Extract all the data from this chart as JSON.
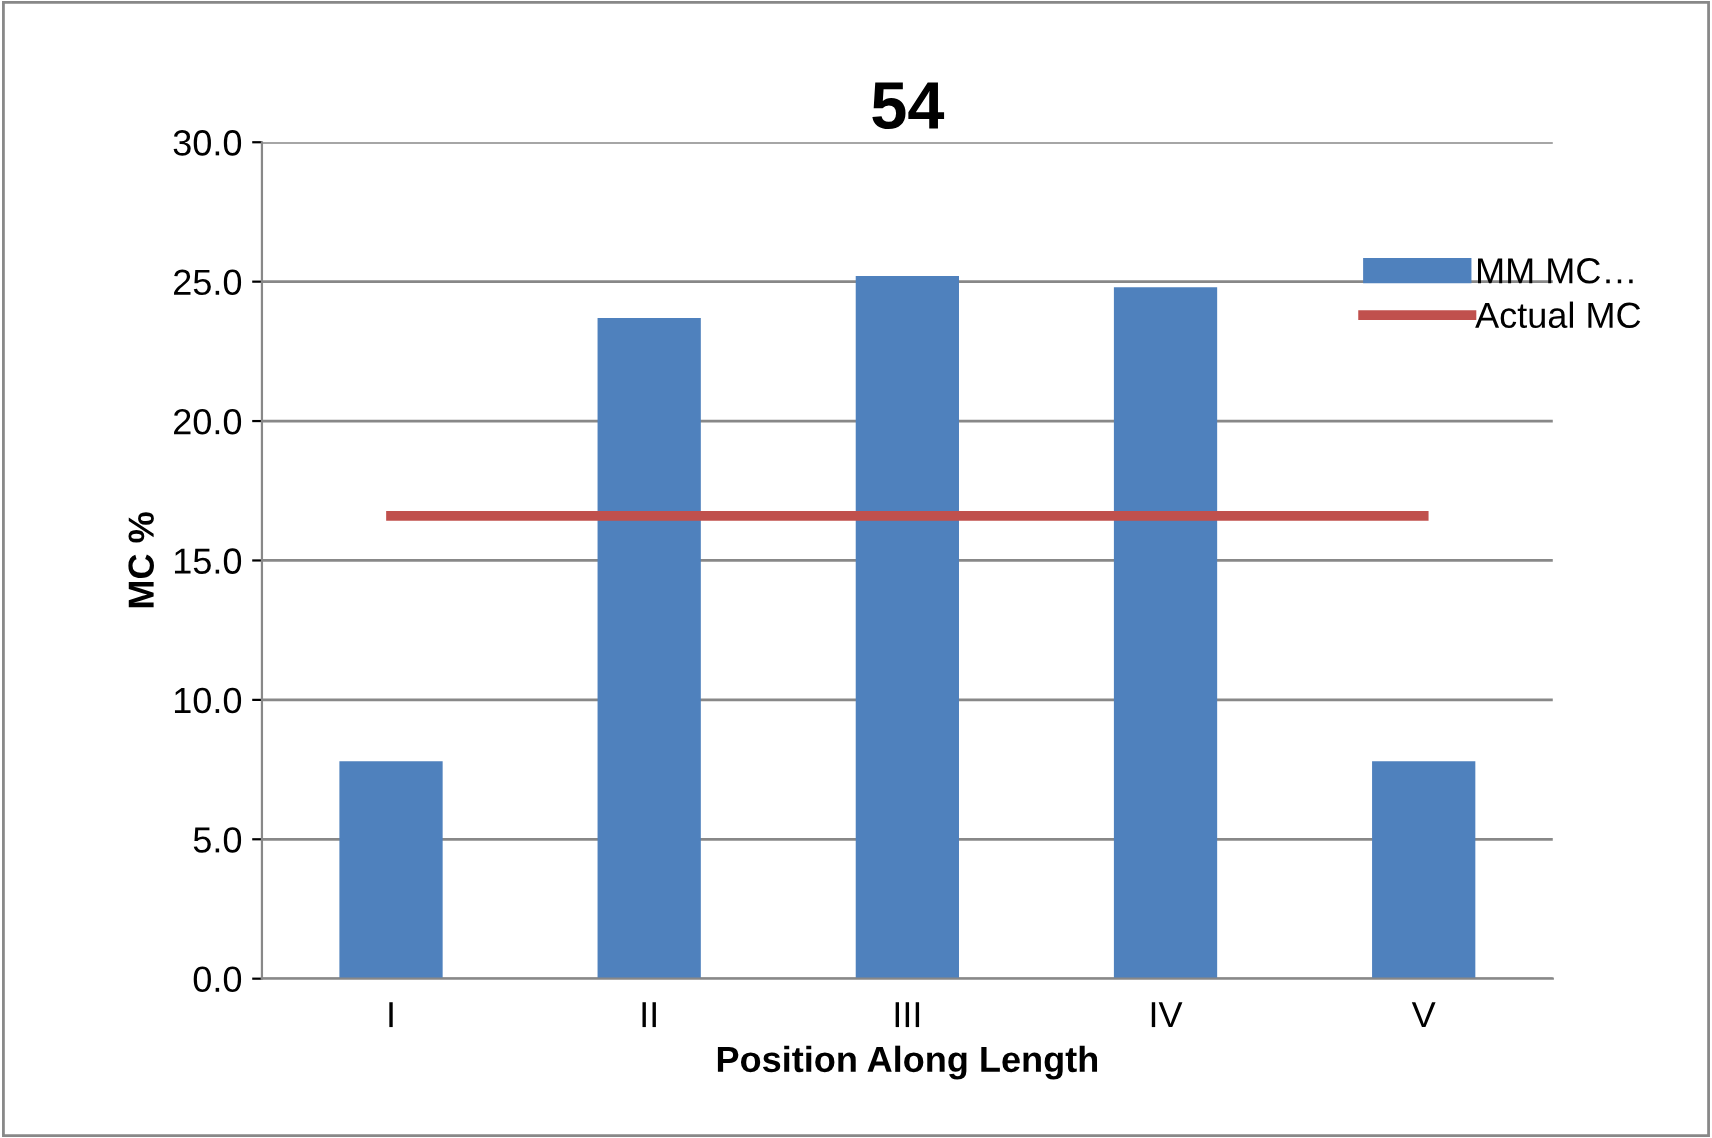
{
  "chart_data": {
    "type": "bar",
    "title": "54",
    "xlabel": "Position Along Length",
    "ylabel": "MC %",
    "categories": [
      "I",
      "II",
      "III",
      "IV",
      "V"
    ],
    "series": [
      {
        "name": "MM MC…",
        "color": "#4f81bd",
        "values": [
          7.8,
          23.7,
          25.2,
          24.8,
          7.8
        ]
      },
      {
        "name": "Actual MC",
        "type": "line",
        "color": "#c0504d",
        "values": [
          16.6,
          16.6,
          16.6,
          16.6,
          16.6
        ]
      }
    ],
    "ylim": [
      0,
      30
    ],
    "yticks": [
      {
        "value": 0,
        "label": "0.0"
      },
      {
        "value": 5,
        "label": "5.0"
      },
      {
        "value": 10,
        "label": "10.0"
      },
      {
        "value": 15,
        "label": "15.0"
      },
      {
        "value": 20,
        "label": "20.0"
      },
      {
        "value": 25,
        "label": "25.0"
      },
      {
        "value": 30,
        "label": "30.0"
      }
    ],
    "grid": "y",
    "legend": "top right"
  }
}
